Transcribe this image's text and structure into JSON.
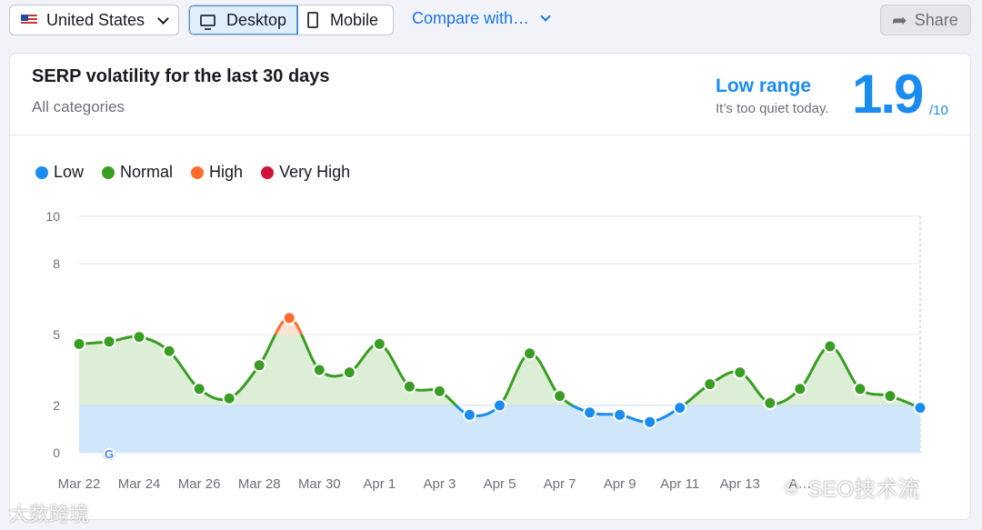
{
  "toolbar": {
    "country": "United States",
    "device_desktop": "Desktop",
    "device_mobile": "Mobile",
    "compare": "Compare with…",
    "share": "Share"
  },
  "card": {
    "title": "SERP volatility for the last 30 days",
    "subtitle": "All categories",
    "range_label": "Low range",
    "range_note": "It’s too quiet today.",
    "score": "1.9",
    "score_max": "/10"
  },
  "legend": [
    {
      "label": "Low",
      "color": "#1a8cf0"
    },
    {
      "label": "Normal",
      "color": "#3a9d23"
    },
    {
      "label": "High",
      "color": "#ff6b2c"
    },
    {
      "label": "Very High",
      "color": "#d3123a"
    }
  ],
  "colors": {
    "low": "#1a8cf0",
    "normal": "#3a9d23",
    "high": "#ff6b2c",
    "very_high": "#d3123a",
    "low_fill": "#cfe6fb",
    "normal_fill": "#dcefd6",
    "high_fill": "#fde2d6"
  },
  "chart_data": {
    "type": "area",
    "x": [
      "Mar 22",
      "Mar 23",
      "Mar 24",
      "Mar 25",
      "Mar 26",
      "Mar 27",
      "Mar 28",
      "Mar 29",
      "Mar 30",
      "Mar 31",
      "Apr 1",
      "Apr 2",
      "Apr 3",
      "Apr 4",
      "Apr 5",
      "Apr 6",
      "Apr 7",
      "Apr 8",
      "Apr 9",
      "Apr 10",
      "Apr 11",
      "Apr 12",
      "Apr 13",
      "Apr 14",
      "Apr 15",
      "Apr 16",
      "Apr 17",
      "Apr 18",
      "Apr 19"
    ],
    "values": [
      4.6,
      4.7,
      4.9,
      4.3,
      2.7,
      2.3,
      3.7,
      5.7,
      3.5,
      3.4,
      4.6,
      2.8,
      2.6,
      1.6,
      2.0,
      4.2,
      2.4,
      1.7,
      1.6,
      1.3,
      1.9,
      2.9,
      3.4,
      2.1,
      2.7,
      4.5,
      2.7,
      2.4,
      1.9
    ],
    "x_tick_labels": [
      "Mar 22",
      "Mar 24",
      "Mar 26",
      "Mar 28",
      "Mar 30",
      "Apr 1",
      "Apr 3",
      "Apr 5",
      "Apr 7",
      "Apr 9",
      "Apr 11",
      "Apr 13",
      "A…"
    ],
    "y_ticks": [
      0,
      2,
      5,
      8,
      10
    ],
    "ylim": [
      0,
      10
    ],
    "thresholds": {
      "low_max": 2,
      "normal_max": 5,
      "high_max": 8
    },
    "annotations": [
      "google-update-marker at Mar 23"
    ],
    "grid": true,
    "legend_position": "top-left"
  },
  "watermarks": [
    "大数跨境",
    "SEO技术流"
  ]
}
